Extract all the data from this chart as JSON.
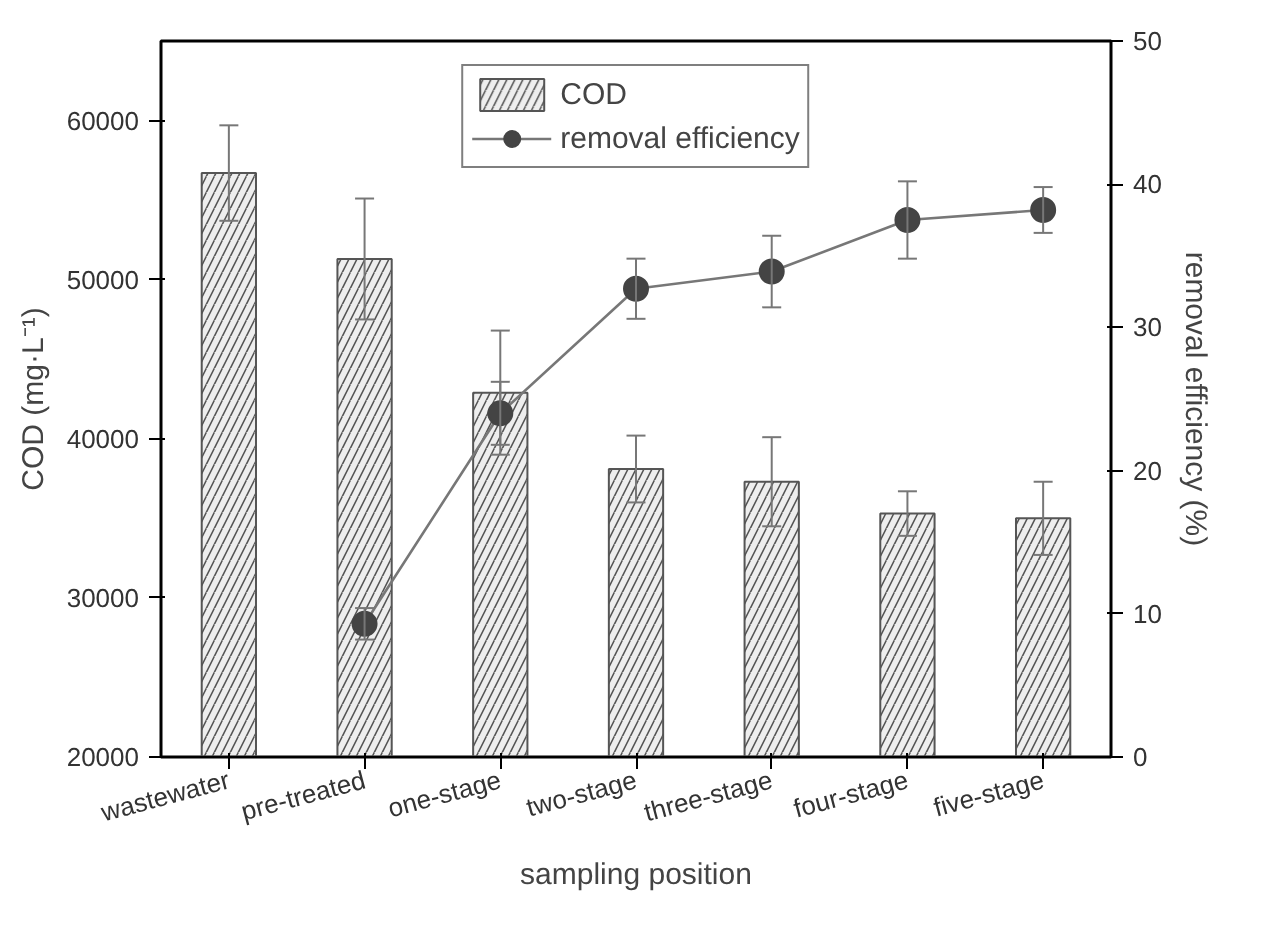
{
  "chart_data": {
    "type": "bar",
    "xlabel": "sampling position",
    "ylabel": "COD (mg·L⁻¹)",
    "y2label": "removal efficiency (%)",
    "categories": [
      "wastewater",
      "pre-treated",
      "one-stage",
      "two-stage",
      "three-stage",
      "four-stage",
      "five-stage"
    ],
    "series": [
      {
        "name": "COD",
        "color": "#555555",
        "values": [
          56700,
          51300,
          42900,
          38100,
          37300,
          35300,
          35000
        ],
        "errors": [
          3000,
          3800,
          3900,
          2100,
          2800,
          1400,
          2300
        ]
      },
      {
        "name": "removal efficiency",
        "type": "line",
        "axis": "y2",
        "color": "#444444",
        "marker": "circle",
        "values": [
          null,
          9.3,
          24.0,
          32.7,
          33.9,
          37.5,
          38.2
        ],
        "errors": [
          null,
          1.1,
          2.2,
          2.1,
          2.5,
          2.7,
          1.6
        ]
      }
    ],
    "ylim": [
      20000,
      65000
    ],
    "yticks": [
      20000,
      30000,
      40000,
      50000,
      60000
    ],
    "y2lim": [
      0,
      50
    ],
    "y2ticks": [
      0,
      10,
      20,
      30,
      40,
      50
    ],
    "grid": false,
    "legend": "top"
  }
}
